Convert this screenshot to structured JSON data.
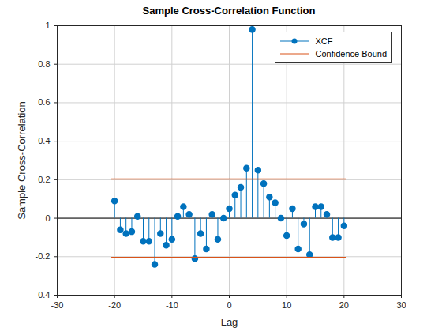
{
  "chart_data": {
    "type": "stem",
    "title": "Sample Cross-Correlation Function",
    "x_label": "Lag",
    "y_label": "Sample Cross-Correlation",
    "series": [
      {
        "name": "XCF",
        "type": "stem",
        "color": "#0072BD",
        "marker": "circle",
        "x": [
          -20,
          -19,
          -18,
          -17,
          -16,
          -15,
          -14,
          -13,
          -12,
          -11,
          -10,
          -9,
          -8,
          -7,
          -6,
          -5,
          -4,
          -3,
          -2,
          -1,
          0,
          1,
          2,
          3,
          4,
          5,
          6,
          7,
          8,
          9,
          10,
          11,
          12,
          13,
          14,
          15,
          16,
          17,
          18,
          19,
          20
        ],
        "values": [
          0.09,
          -0.06,
          -0.08,
          -0.07,
          0.01,
          -0.12,
          -0.12,
          -0.24,
          -0.08,
          -0.14,
          -0.11,
          0.01,
          0.06,
          0.02,
          -0.21,
          -0.08,
          -0.16,
          0.02,
          -0.11,
          0.0,
          0.05,
          0.12,
          0.16,
          0.26,
          0.98,
          0.25,
          0.18,
          0.11,
          0.08,
          0.0,
          -0.09,
          0.05,
          -0.16,
          -0.03,
          -0.19,
          0.06,
          0.06,
          0.02,
          -0.1,
          -0.1,
          -0.04
        ]
      },
      {
        "name": "Confidence Bound",
        "type": "hline",
        "color": "#D95319",
        "line_style": "solid",
        "x": [
          -20.5,
          20.5
        ],
        "values": [
          0.204,
          -0.204
        ]
      }
    ],
    "xlim": [
      -30,
      30
    ],
    "xticks": [
      -30,
      -20,
      -10,
      0,
      10,
      20,
      30
    ],
    "ylim": [
      -0.4,
      1
    ],
    "yticks": [
      -0.4,
      -0.2,
      0,
      0.2,
      0.4,
      0.6,
      0.8,
      1
    ],
    "grid": true,
    "legend": "northeast"
  }
}
